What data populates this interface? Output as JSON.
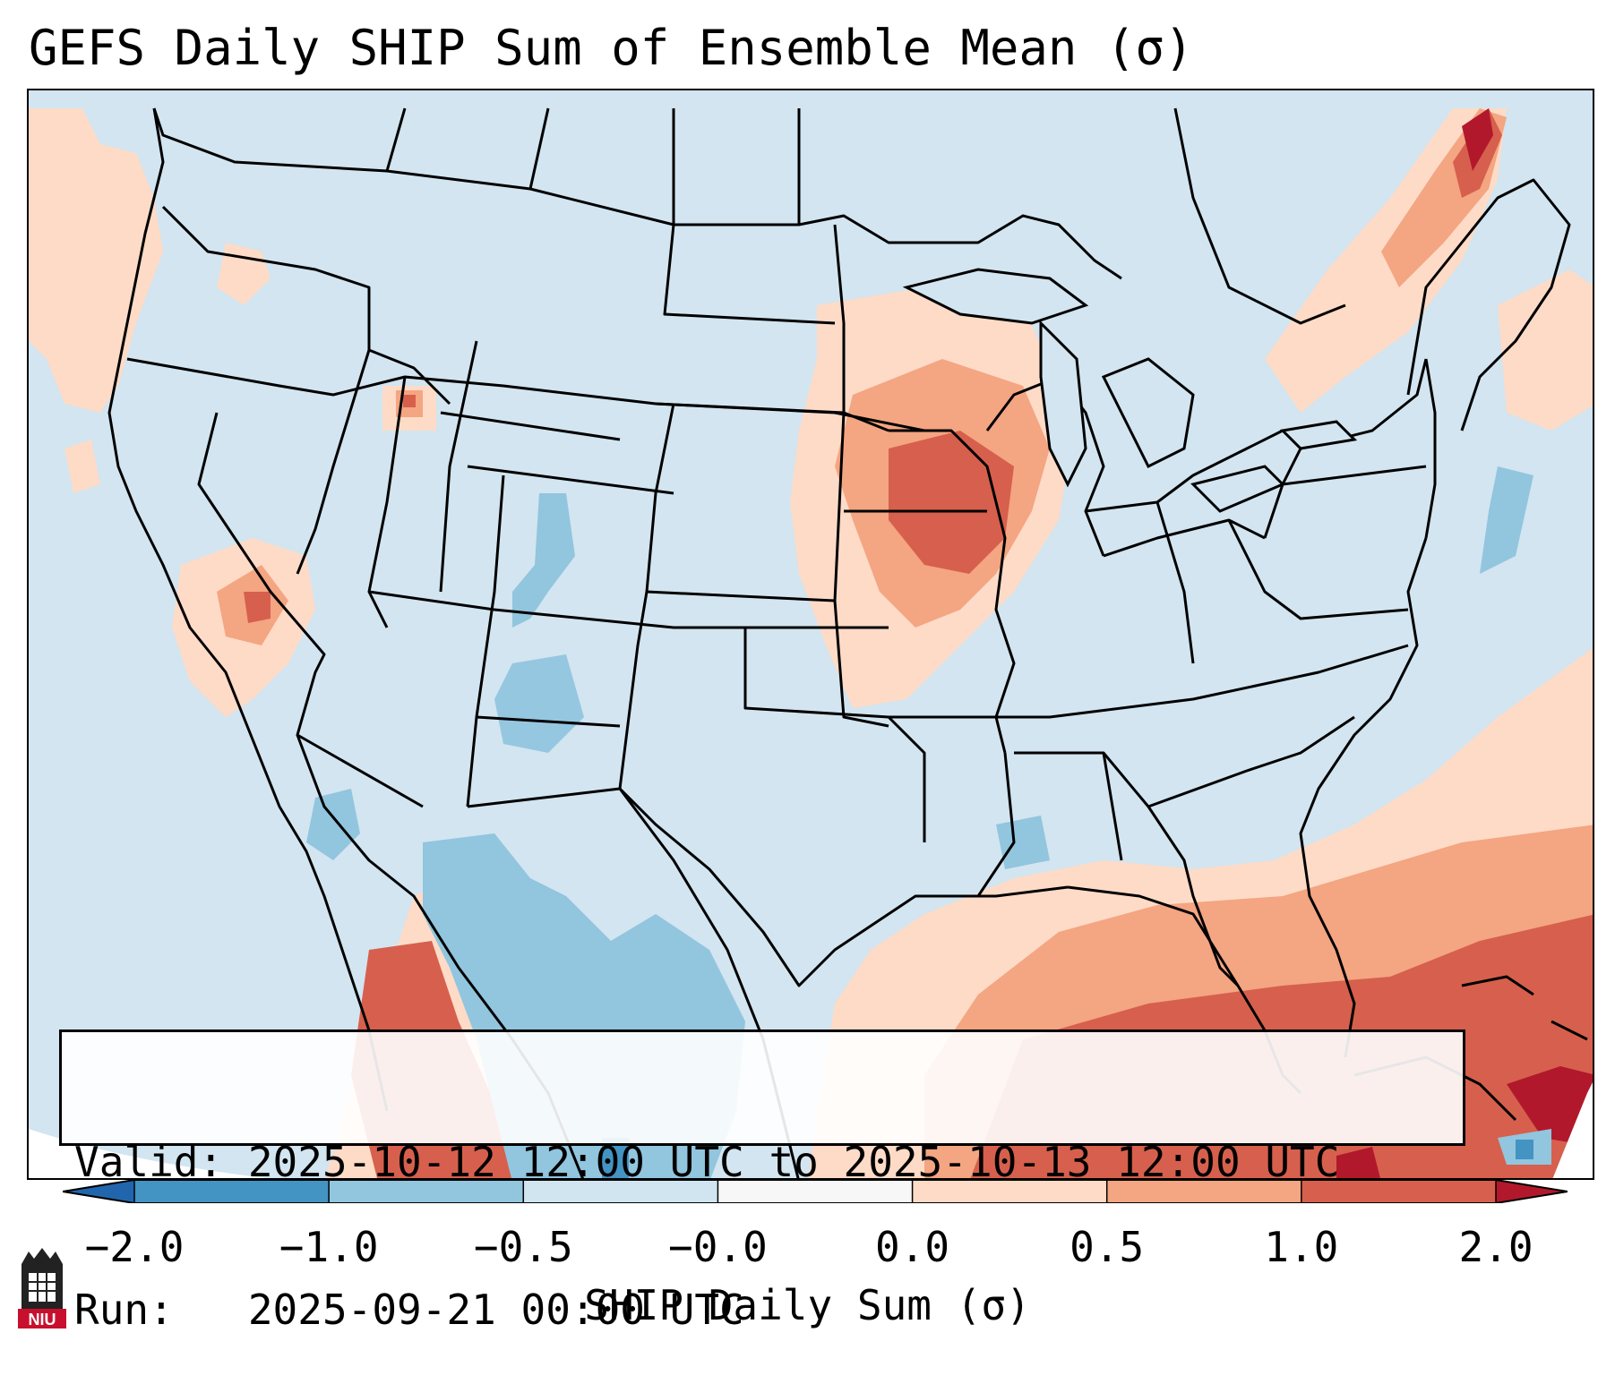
{
  "title": "GEFS Daily SHIP Sum of Ensemble Mean (σ)",
  "info": {
    "valid_line": "Valid: 2025-10-12 12:00 UTC to 2025-10-13 12:00 UTC",
    "run_line": "Run:   2025-09-21 00:00 UTC"
  },
  "colorbar": {
    "label": "SHIP Daily Sum (σ)",
    "ticks": [
      "−2.0",
      "−1.0",
      "−0.5",
      "−0.0",
      "0.0",
      "0.5",
      "1.0",
      "2.0"
    ],
    "bins": [
      {
        "range": "below -2.0",
        "color": "#2166ac"
      },
      {
        "range": "-2.0 to -1.0",
        "color": "#4393c3"
      },
      {
        "range": "-1.0 to -0.5",
        "color": "#92c5de"
      },
      {
        "range": "-0.5 to -0.0",
        "color": "#d1e5f0"
      },
      {
        "range": "-0.0 to 0.0",
        "color": "#f7f7f7"
      },
      {
        "range": "0.0 to 0.5",
        "color": "#fddbc7"
      },
      {
        "range": "0.5 to 1.0",
        "color": "#f4a582"
      },
      {
        "range": "1.0 to 2.0",
        "color": "#d6604d"
      },
      {
        "range": "above 2.0",
        "color": "#b2182b"
      }
    ]
  },
  "map": {
    "region": "Contiguous United States, southern Canada, northern Mexico, Gulf of Mexico",
    "background_color": "#d2e5f0",
    "notable_features": [
      {
        "area": "Upper Mississippi Valley (Iowa, Wisconsin, Illinois)",
        "category": "0.5 to 2.0"
      },
      {
        "area": "Gulf of Mexico / Caribbean / western Atlantic",
        "category": "0.5 to 2.0"
      },
      {
        "area": "Northern Maine",
        "category": "above 2.0"
      },
      {
        "area": "Colorado / New Mexico / Texas / Mexico",
        "category": "-1.0 to -0.5"
      }
    ]
  },
  "logo": {
    "text": "NIU"
  }
}
